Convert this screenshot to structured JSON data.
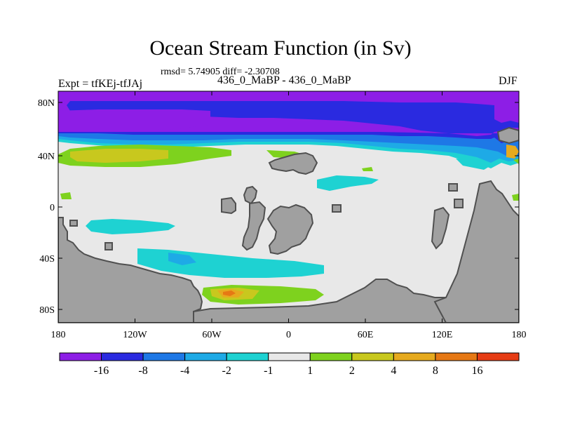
{
  "title": "Ocean Stream Function (in Sv)",
  "subtitle": "rmsd= 5.74905 diff= -2.30708",
  "left_string": "Expt = tfKEj-tfJAj",
  "center_string": "436_0_MaBP - 436_0_MaBP",
  "right_string": "DJF",
  "y_ticks": [
    "80N",
    "40N",
    "0",
    "40S",
    "80S"
  ],
  "x_ticks": [
    "180",
    "120W",
    "60W",
    "0",
    "60E",
    "120E",
    "180"
  ],
  "colorbar": {
    "colors": [
      "#8d1ee6",
      "#2a2ae0",
      "#1e78e6",
      "#1eaae6",
      "#1ed2d2",
      "#e8e8e8",
      "#7ed21e",
      "#c8c81e",
      "#e6aa1e",
      "#e67814",
      "#e63c14"
    ],
    "labels": [
      "-16",
      "-8",
      "-4",
      "-2",
      "-1",
      "1",
      "2",
      "4",
      "8",
      "16"
    ]
  },
  "colors": {
    "land": "#a0a0a0",
    "ocean_neutral": "#e8e8e8",
    "coast": "#505050"
  }
}
